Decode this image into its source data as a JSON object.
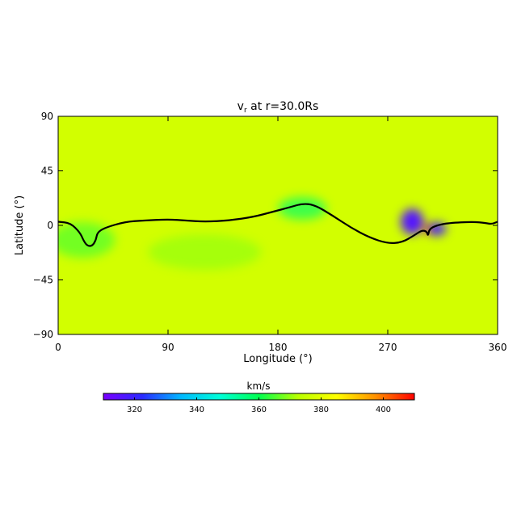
{
  "chart_data": {
    "type": "heatmap",
    "title": "v",
    "title_subscript": "r",
    "title_suffix": " at r=30.0Rs",
    "xlabel": "Longitude (°)",
    "ylabel": "Latitude (°)",
    "xlim": [
      0,
      360
    ],
    "ylim": [
      -90,
      90
    ],
    "x_ticks": [
      0,
      90,
      180,
      270,
      360
    ],
    "y_ticks": [
      90,
      45,
      0,
      -45,
      -90
    ],
    "x_tick_labels": [
      "0",
      "90",
      "180",
      "270",
      "360"
    ],
    "y_tick_labels": [
      "90",
      "45",
      "0",
      "−45",
      "−90"
    ],
    "colorbar": {
      "label": "km/s",
      "range": [
        310,
        410
      ],
      "ticks": [
        320,
        340,
        360,
        380,
        400
      ],
      "tick_labels": [
        "320",
        "340",
        "360",
        "380",
        "400"
      ],
      "colormap": [
        "#7a00ff",
        "#2a2aff",
        "#00b8ff",
        "#00ffd8",
        "#00ff50",
        "#b8ff00",
        "#ffff00",
        "#ff9000",
        "#ff0000"
      ]
    },
    "background_value": 377,
    "field_features": [
      {
        "lon": 290,
        "lat": 3,
        "value": 316
      },
      {
        "lon": 310,
        "lat": -3,
        "value": 318
      },
      {
        "lon": 302,
        "lat": -3,
        "value": 405
      },
      {
        "lon": 200,
        "lat": 14,
        "value": 358
      },
      {
        "lon": 20,
        "lat": -12,
        "value": 365
      },
      {
        "lon": 120,
        "lat": -22,
        "value": 370
      }
    ],
    "neutral_line": [
      [
        0,
        3
      ],
      [
        10,
        2
      ],
      [
        18,
        -6
      ],
      [
        21,
        -13
      ],
      [
        24,
        -17
      ],
      [
        28,
        -17
      ],
      [
        31,
        -12
      ],
      [
        32,
        -6
      ],
      [
        38,
        -2
      ],
      [
        55,
        3
      ],
      [
        70,
        4
      ],
      [
        90,
        5
      ],
      [
        105,
        4
      ],
      [
        120,
        3
      ],
      [
        140,
        4
      ],
      [
        160,
        7
      ],
      [
        175,
        11
      ],
      [
        190,
        15
      ],
      [
        200,
        18
      ],
      [
        210,
        17
      ],
      [
        225,
        8
      ],
      [
        240,
        -2
      ],
      [
        255,
        -10
      ],
      [
        270,
        -15
      ],
      [
        282,
        -14
      ],
      [
        292,
        -8
      ],
      [
        298,
        -4
      ],
      [
        302,
        -5
      ],
      [
        303,
        -9
      ],
      [
        304,
        -3
      ],
      [
        310,
        0
      ],
      [
        320,
        2
      ],
      [
        340,
        3
      ],
      [
        350,
        2
      ],
      [
        355,
        1
      ],
      [
        360,
        3
      ]
    ]
  }
}
